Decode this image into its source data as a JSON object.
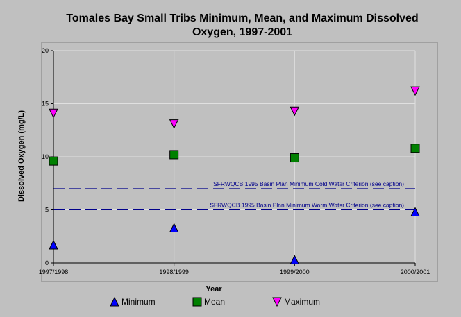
{
  "chart_data": {
    "type": "scatter",
    "title_lines": [
      "Tomales Bay Small Tribs Minimum, Mean, and Maximum Dissolved",
      "Oxygen, 1997-2001"
    ],
    "xlabel": "Year",
    "ylabel": "Dissolved Oxygen (mg/L)",
    "categories": [
      "1997/1998",
      "1998/1999",
      "1999/2000",
      "2000/2001"
    ],
    "ylim": [
      0,
      20
    ],
    "yticks": [
      "0",
      "5",
      "10",
      "15",
      "20"
    ],
    "grid": true,
    "series": [
      {
        "name": "Minimum",
        "marker": "triangle-up",
        "color": "#0000ff",
        "values": [
          1.7,
          3.3,
          0.3,
          4.8
        ]
      },
      {
        "name": "Mean",
        "marker": "square",
        "color": "#008000",
        "values": [
          9.6,
          10.2,
          9.9,
          10.8
        ]
      },
      {
        "name": "Maximum",
        "marker": "triangle-down",
        "color": "#ff00ff",
        "values": [
          14.1,
          13.1,
          14.3,
          16.2
        ]
      }
    ],
    "reference_lines": [
      {
        "label": "SFRWQCB 1995 Basin Plan Minimum Cold Water Criterion (see caption)",
        "y": 7,
        "color": "#00008b"
      },
      {
        "label": "SFRWQCB 1995 Basin Plan Minimum Warm Water Criterion (see caption)",
        "y": 5,
        "color": "#00008b"
      }
    ],
    "legend_position": "bottom"
  }
}
